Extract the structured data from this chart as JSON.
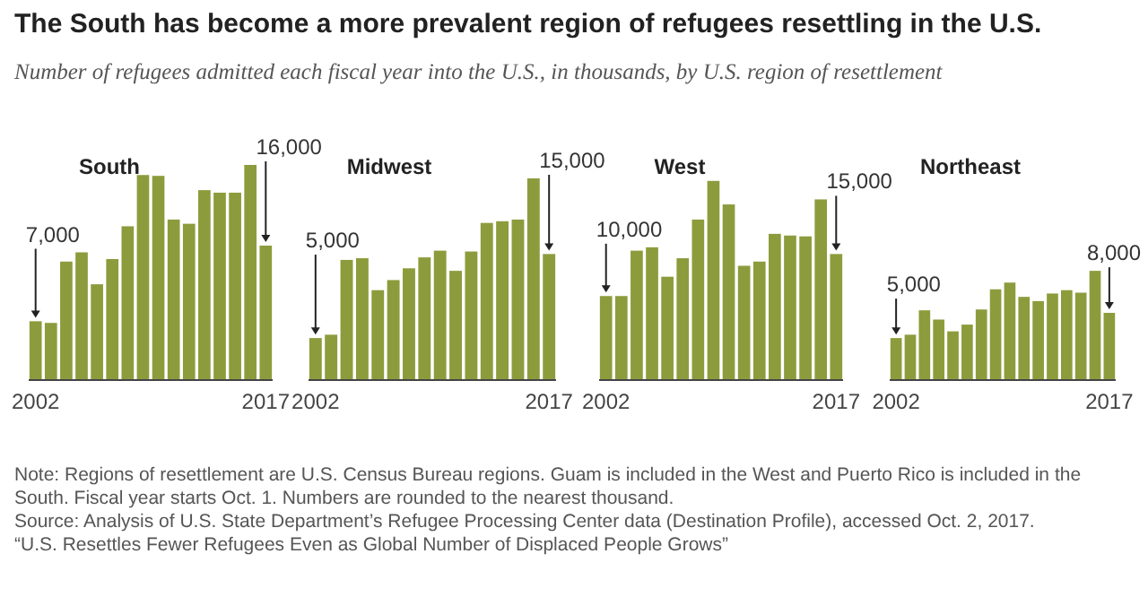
{
  "chart_data": [
    {
      "type": "other",
      "title": "The South has become a more prevalent region of refugees resettling in the U.S.",
      "subtitle": "Number of refugees admitted each fiscal year into the U.S., in thousands, by U.S. region of resettlement",
      "annotations": [
        "Note: Regions of resettlement are U.S. Census Bureau regions. Guam is included in the West and Puerto Rico is included in the South. Fiscal year starts Oct. 1. Numbers are rounded to the nearest thousand.",
        "Source: Analysis of U.S. State Department’s Refugee Processing Center data (Destination Profile), accessed Oct. 2, 2017.",
        "“U.S. Resettles Fewer Refugees Even as Global Number of Displaced People Grows”"
      ]
    },
    {
      "type": "bar",
      "title": "South",
      "categories": [
        "2002",
        null,
        null,
        null,
        null,
        null,
        null,
        null,
        null,
        null,
        null,
        null,
        null,
        null,
        null,
        "2017"
      ],
      "values": [
        7000,
        6800,
        14100,
        15200,
        11400,
        14400,
        18300,
        24400,
        24300,
        19100,
        18600,
        22600,
        22300,
        22300,
        25600,
        16000
      ],
      "value_labels": [
        "7,000",
        null,
        null,
        null,
        null,
        null,
        null,
        null,
        null,
        null,
        null,
        null,
        null,
        null,
        null,
        "16,000"
      ],
      "color": "#8c9c3c",
      "tick_labels": "x"
    },
    {
      "type": "bar",
      "title": "Midwest",
      "categories": [
        "2002",
        null,
        null,
        null,
        null,
        null,
        null,
        null,
        null,
        null,
        null,
        null,
        null,
        null,
        null,
        "2017"
      ],
      "values": [
        5000,
        5400,
        14300,
        14500,
        10700,
        11900,
        13300,
        14600,
        15400,
        13000,
        15300,
        18700,
        18900,
        19100,
        24000,
        15000
      ],
      "value_labels": [
        "5,000",
        null,
        null,
        null,
        null,
        null,
        null,
        null,
        null,
        null,
        null,
        null,
        null,
        null,
        null,
        "15,000"
      ],
      "color": "#8c9c3c",
      "tick_labels": "x"
    },
    {
      "type": "bar",
      "title": "West",
      "categories": [
        "2002",
        null,
        null,
        null,
        null,
        null,
        null,
        null,
        null,
        null,
        null,
        null,
        null,
        null,
        null,
        "2017"
      ],
      "values": [
        10000,
        10000,
        15400,
        15800,
        12300,
        14500,
        19100,
        23700,
        20900,
        13600,
        14100,
        17400,
        17200,
        17100,
        21500,
        15000
      ],
      "value_labels": [
        "10,000",
        null,
        null,
        null,
        null,
        null,
        null,
        null,
        null,
        null,
        null,
        null,
        null,
        null,
        null,
        "15,000"
      ],
      "color": "#8c9c3c",
      "tick_labels": "x"
    },
    {
      "type": "bar",
      "title": "Northeast",
      "categories": [
        "2002",
        null,
        null,
        null,
        null,
        null,
        null,
        null,
        null,
        null,
        null,
        null,
        null,
        null,
        null,
        "2017"
      ],
      "values": [
        5000,
        5400,
        8300,
        7200,
        5800,
        6600,
        8400,
        10800,
        11600,
        9900,
        9400,
        10300,
        10700,
        10400,
        13000,
        8000
      ],
      "value_labels": [
        "5,000",
        null,
        null,
        null,
        null,
        null,
        null,
        null,
        null,
        null,
        null,
        null,
        null,
        null,
        null,
        "8,000"
      ],
      "color": "#8c9c3c",
      "tick_labels": "x"
    }
  ]
}
